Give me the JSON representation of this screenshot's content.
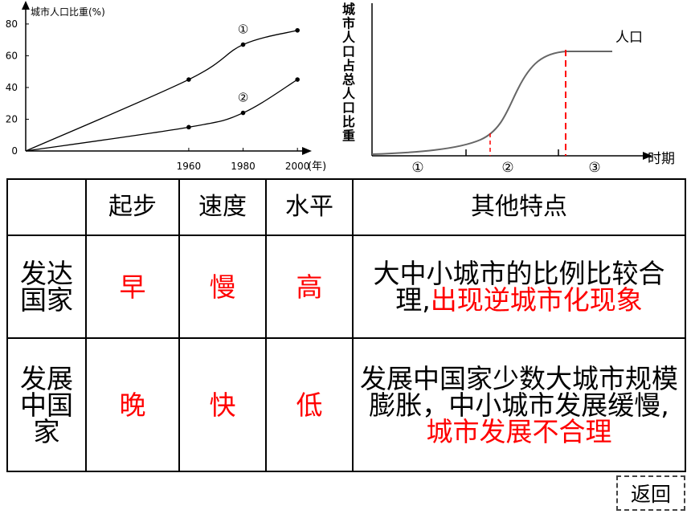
{
  "chart_data": [
    {
      "type": "line",
      "ylabel": "城市人口比重(%)",
      "xlabel": "(年)",
      "ylim": [
        0,
        85
      ],
      "xlim": [
        1900,
        2010
      ],
      "x_ticks": [
        1960,
        1980,
        2000
      ],
      "x_tick_labels": [
        "1960",
        "1980",
        "2000"
      ],
      "y_ticks": [
        0,
        20,
        40,
        60,
        80
      ],
      "series": [
        {
          "name": "①",
          "x": [
            1900,
            1960,
            1980,
            2000
          ],
          "values": [
            0,
            45,
            67,
            76
          ]
        },
        {
          "name": "②",
          "x": [
            1900,
            1960,
            1980,
            2000
          ],
          "values": [
            0,
            15,
            24,
            45
          ]
        }
      ]
    },
    {
      "type": "line",
      "ylabel": "城市人口占总人口比重",
      "xlabel": "时期",
      "curve_label": "人口",
      "stages": [
        "①",
        "②",
        "③"
      ]
    }
  ],
  "table": {
    "headers": [
      "",
      "起步",
      "速度",
      "水平",
      "其他特点"
    ],
    "rows": [
      {
        "label": "发达国家",
        "start": "早",
        "speed": "慢",
        "level": "高",
        "notes_black": "大中小城市的比例比较合理,",
        "notes_red": "出现逆城市化现象"
      },
      {
        "label": "发展中国家",
        "start": "晚",
        "speed": "快",
        "level": "低",
        "notes_black": "发展中国家少数大城市规模膨胀，中小城市发展缓慢,",
        "notes_red": "城市发展不合理"
      }
    ]
  },
  "back_label": "返回"
}
